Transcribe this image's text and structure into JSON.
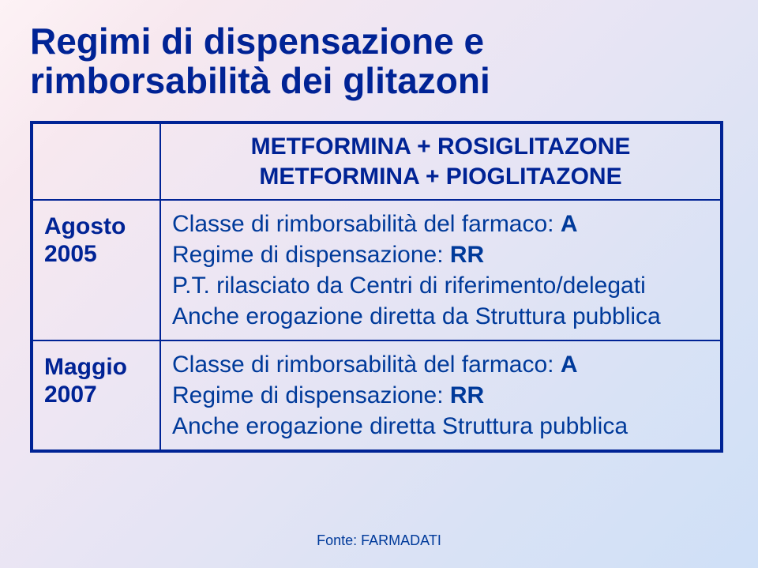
{
  "colors": {
    "title": "#002395",
    "border": "#002395",
    "row_label": "#002395",
    "body_text": "#003a9a",
    "footer": "#003a9a"
  },
  "title_line1": "Regimi di dispensazione e",
  "title_line2": "rimborsabilità dei glitazoni",
  "header": {
    "line1": "METFORMINA + ROSIGLITAZONE",
    "line2": "METFORMINA + PIOGLITAZONE"
  },
  "row1": {
    "label_line1": "Agosto",
    "label_line2": "2005",
    "t1a": "Classe di rimborsabilità del farmaco: ",
    "t1b": "A",
    "t2a": "Regime di dispensazione: ",
    "t2b": "RR",
    "t3": "P.T. rilasciato da Centri di riferimento/delegati",
    "t4": "Anche erogazione diretta da Struttura pubblica"
  },
  "row2": {
    "label_line1": "Maggio",
    "label_line2": "2007",
    "t1a": "Classe di rimborsabilità del farmaco: ",
    "t1b": "A",
    "t2a": "Regime di dispensazione: ",
    "t2b": "RR",
    "t3": "Anche erogazione diretta Struttura pubblica"
  },
  "footer": "Fonte: FARMADATI"
}
